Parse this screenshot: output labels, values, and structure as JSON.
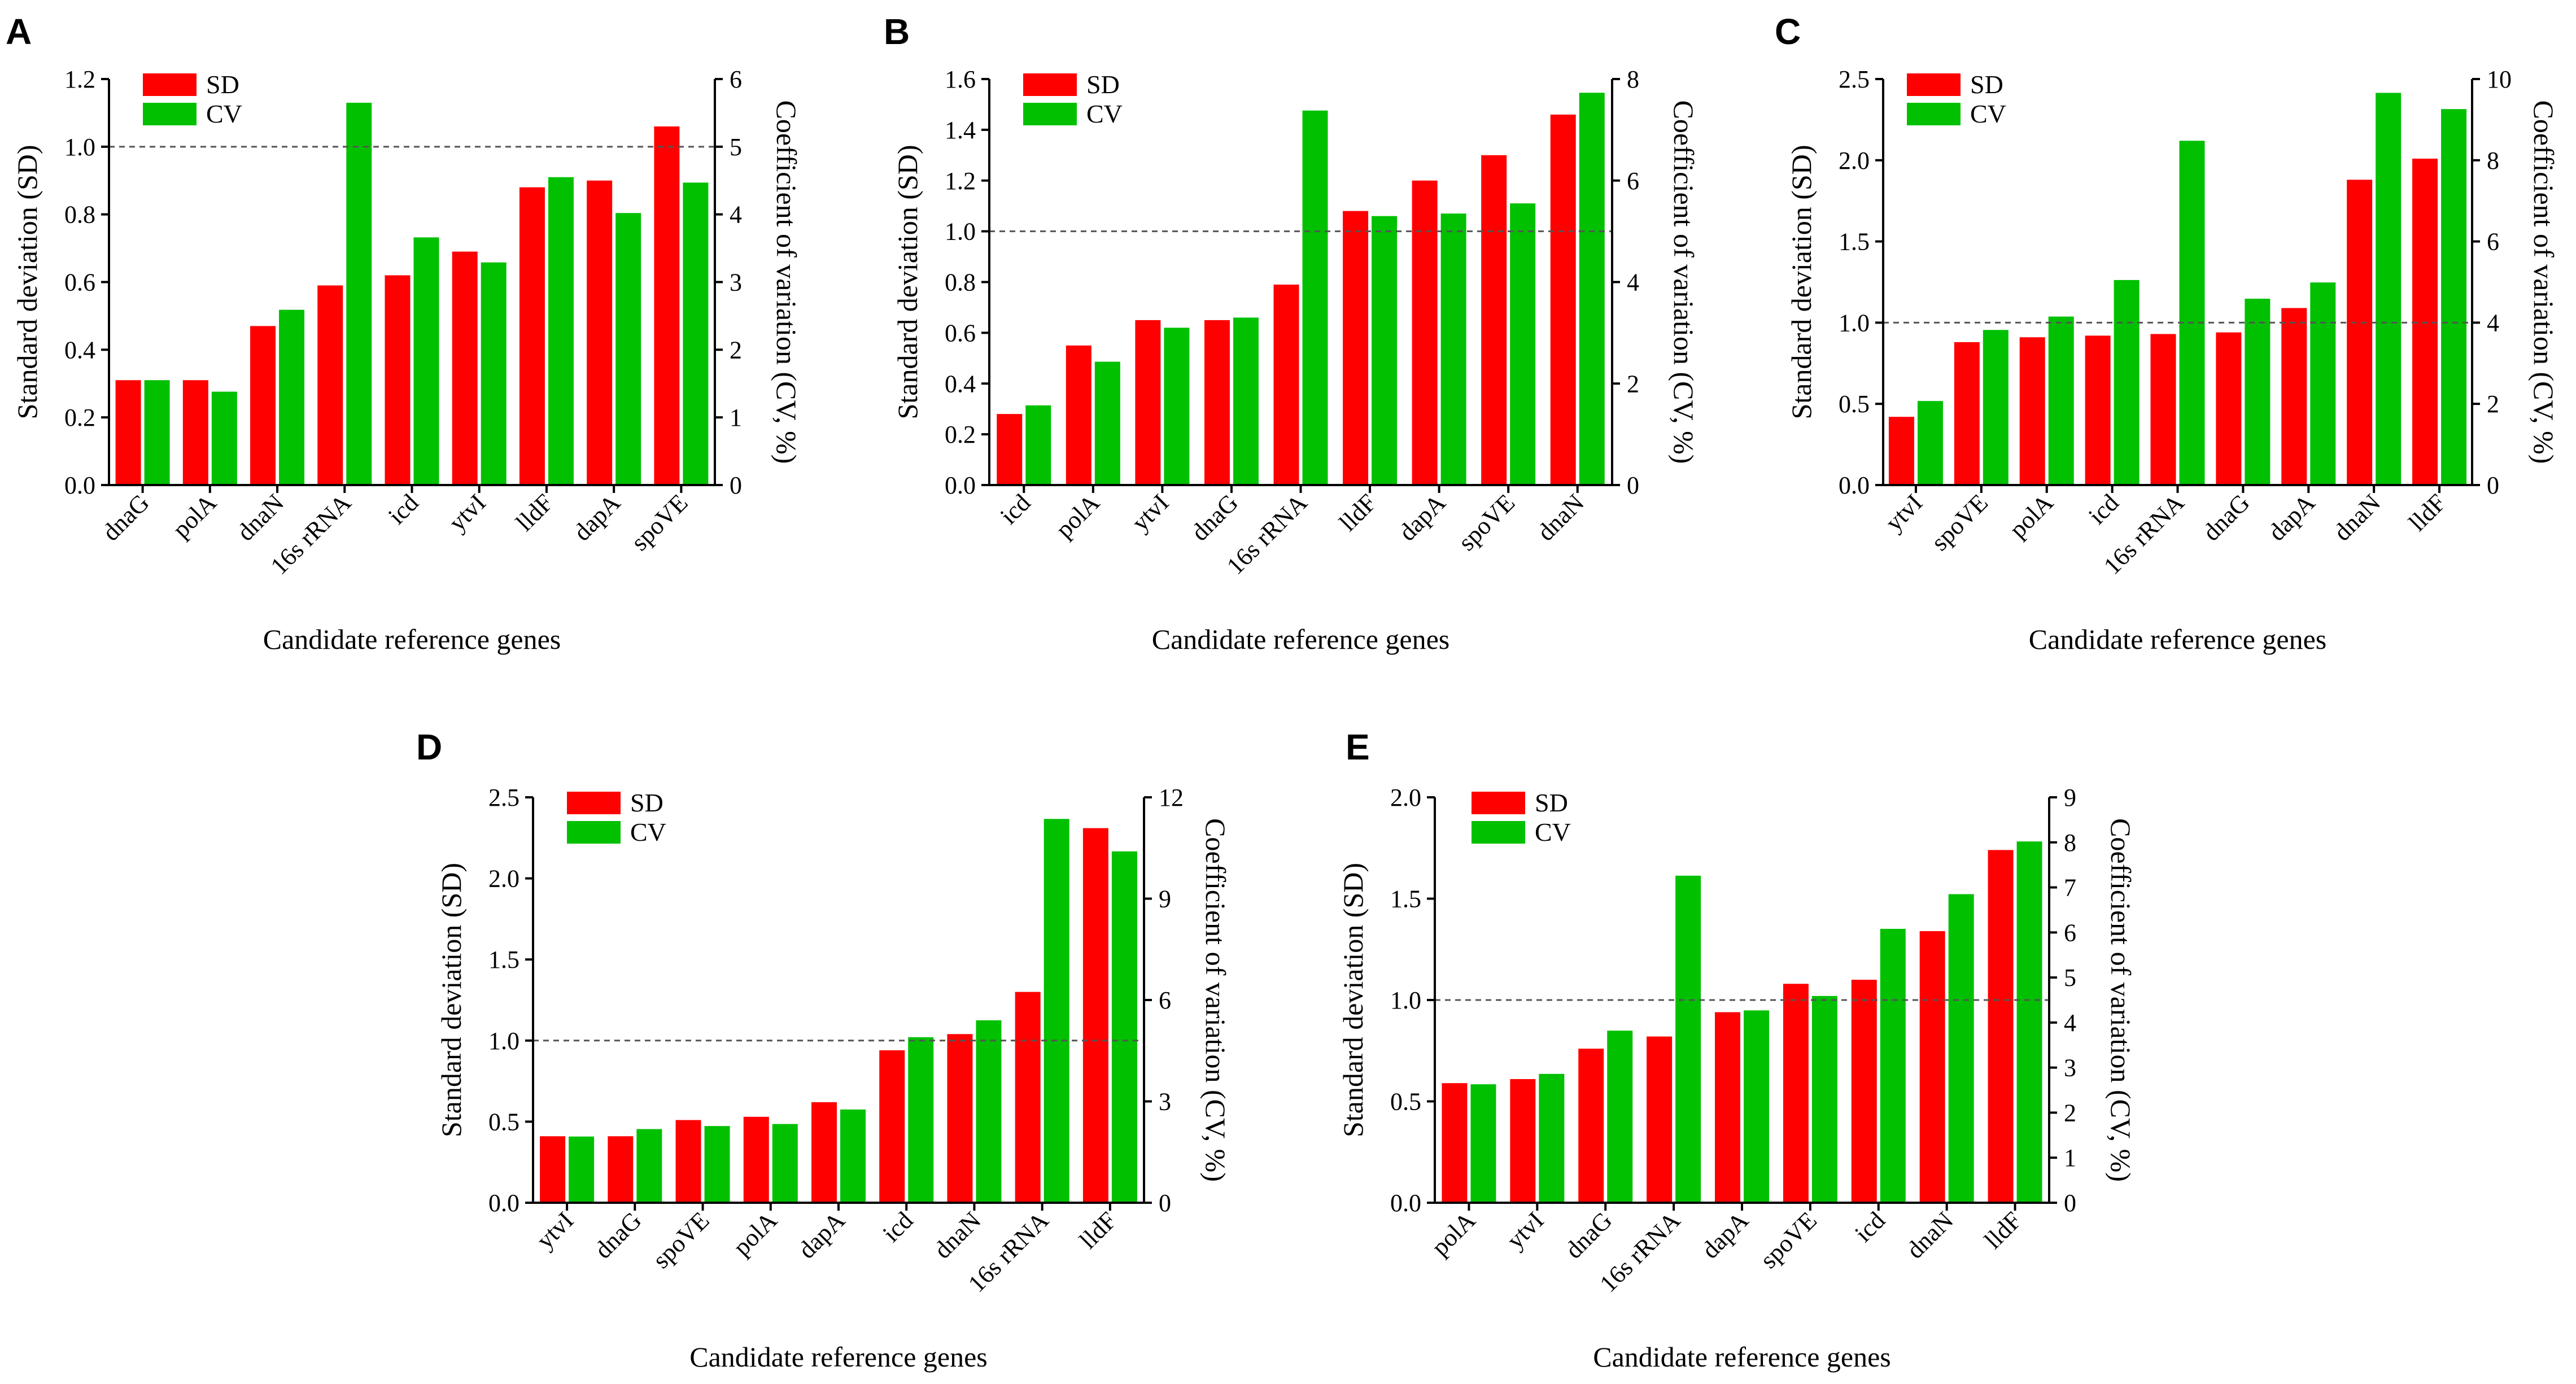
{
  "figure": {
    "legend_sd": "SD",
    "legend_cv": "CV",
    "colors": {
      "sd": "#ff0000",
      "cv": "#00c000",
      "axis": "#000000",
      "reference_line": "#555555"
    }
  },
  "chart_data": [
    {
      "type": "bar",
      "panel_label": "A",
      "xlabel": "Candidate reference genes",
      "ylabel": "Standard deviation (SD)",
      "y2label": "Coefficient of variation (CV, %)",
      "categories": [
        "dnaG",
        "polA",
        "dnaN",
        "16s rRNA",
        "icd",
        "ytvI",
        "lldF",
        "dapA",
        "spoVE"
      ],
      "ylim": [
        0,
        1.2
      ],
      "y2lim": [
        0,
        6
      ],
      "yticks": [
        "0.0",
        "0.2",
        "0.4",
        "0.6",
        "0.8",
        "1.0",
        "1.2"
      ],
      "y2ticks": [
        "0",
        "1",
        "2",
        "3",
        "4",
        "5",
        "6"
      ],
      "reference_line": 1.0,
      "legend": "top-left",
      "series": [
        {
          "name": "SD",
          "axis": "left",
          "values": [
            0.31,
            0.31,
            0.47,
            0.59,
            0.62,
            0.69,
            0.88,
            0.9,
            1.06
          ]
        },
        {
          "name": "CV",
          "axis": "right",
          "values": [
            1.55,
            1.38,
            2.59,
            5.65,
            3.66,
            3.29,
            4.55,
            4.02,
            4.47
          ]
        }
      ]
    },
    {
      "type": "bar",
      "panel_label": "B",
      "xlabel": "Candidate reference genes",
      "ylabel": "Standard deviation (SD)",
      "y2label": "Coefficient of variation (CV, %)",
      "categories": [
        "icd",
        "polA",
        "ytvI",
        "dnaG",
        "16s rRNA",
        "lldF",
        "dapA",
        "spoVE",
        "dnaN"
      ],
      "ylim": [
        0,
        1.6
      ],
      "y2lim": [
        0,
        8
      ],
      "yticks": [
        "0.0",
        "0.2",
        "0.4",
        "0.6",
        "0.8",
        "1.0",
        "1.2",
        "1.4",
        "1.6"
      ],
      "y2ticks": [
        "0",
        "2",
        "4",
        "6",
        "8"
      ],
      "reference_line": 1.0,
      "legend": "top-left",
      "series": [
        {
          "name": "SD",
          "axis": "left",
          "values": [
            0.28,
            0.55,
            0.65,
            0.65,
            0.79,
            1.08,
            1.2,
            1.3,
            1.46
          ]
        },
        {
          "name": "CV",
          "axis": "right",
          "values": [
            1.57,
            2.43,
            3.1,
            3.3,
            7.38,
            5.3,
            5.35,
            5.55,
            7.73
          ]
        }
      ]
    },
    {
      "type": "bar",
      "panel_label": "C",
      "xlabel": "Candidate reference genes",
      "ylabel": "Standard deviation (SD)",
      "y2label": "Coefficient of variation (CV, %)",
      "categories": [
        "ytvI",
        "spoVE",
        "polA",
        "icd",
        "16s rRNA",
        "dnaG",
        "dapA",
        "dnaN",
        "lldF"
      ],
      "ylim": [
        0,
        2.5
      ],
      "y2lim": [
        0,
        10
      ],
      "yticks": [
        "0.0",
        "0.5",
        "1.0",
        "1.5",
        "2.0",
        "2.5"
      ],
      "y2ticks": [
        "0",
        "2",
        "4",
        "6",
        "8",
        "10"
      ],
      "reference_line": 1.0,
      "legend": "top-left",
      "series": [
        {
          "name": "SD",
          "axis": "left",
          "values": [
            0.42,
            0.88,
            0.91,
            0.92,
            0.93,
            0.94,
            1.09,
            1.88,
            2.01
          ]
        },
        {
          "name": "CV",
          "axis": "right",
          "values": [
            2.07,
            3.82,
            4.15,
            5.05,
            8.48,
            4.59,
            4.99,
            9.66,
            9.26
          ]
        }
      ]
    },
    {
      "type": "bar",
      "panel_label": "D",
      "xlabel": "Candidate reference genes",
      "ylabel": "Standard deviation (SD)",
      "y2label": "Coefficient of variation (CV, %)",
      "categories": [
        "ytvI",
        "dnaG",
        "spoVE",
        "polA",
        "dapA",
        "icd",
        "dnaN",
        "16s rRNA",
        "lldF"
      ],
      "ylim": [
        0,
        2.5
      ],
      "y2lim": [
        0,
        12
      ],
      "yticks": [
        "0.0",
        "0.5",
        "1.0",
        "1.5",
        "2.0",
        "2.5"
      ],
      "y2ticks": [
        "0",
        "3",
        "6",
        "9",
        "12"
      ],
      "reference_line": 1.0,
      "legend": "top-left",
      "series": [
        {
          "name": "SD",
          "axis": "left",
          "values": [
            0.41,
            0.41,
            0.51,
            0.53,
            0.62,
            0.94,
            1.04,
            1.3,
            2.31
          ]
        },
        {
          "name": "CV",
          "axis": "right",
          "values": [
            1.96,
            2.18,
            2.27,
            2.33,
            2.76,
            4.9,
            5.4,
            11.36,
            10.4
          ]
        }
      ]
    },
    {
      "type": "bar",
      "panel_label": "E",
      "xlabel": "Candidate reference genes",
      "ylabel": "Standard deviation (SD)",
      "y2label": "Coefficient of variation (CV, %)",
      "categories": [
        "polA",
        "ytvI",
        "dnaG",
        "16s rRNA",
        "dapA",
        "spoVE",
        "icd",
        "dnaN",
        "lldF"
      ],
      "ylim": [
        0,
        2.0
      ],
      "y2lim": [
        0,
        9
      ],
      "yticks": [
        "0.0",
        "0.5",
        "1.0",
        "1.5",
        "2.0"
      ],
      "y2ticks": [
        "0",
        "1",
        "2",
        "3",
        "4",
        "5",
        "6",
        "7",
        "8",
        "9"
      ],
      "reference_line": 1.0,
      "legend": "top-left",
      "series": [
        {
          "name": "SD",
          "axis": "left",
          "values": [
            0.59,
            0.61,
            0.76,
            0.82,
            0.94,
            1.08,
            1.1,
            1.34,
            1.74
          ]
        },
        {
          "name": "CV",
          "axis": "right",
          "values": [
            2.63,
            2.86,
            3.82,
            7.26,
            4.27,
            4.59,
            6.08,
            6.85,
            8.02
          ]
        }
      ]
    }
  ]
}
